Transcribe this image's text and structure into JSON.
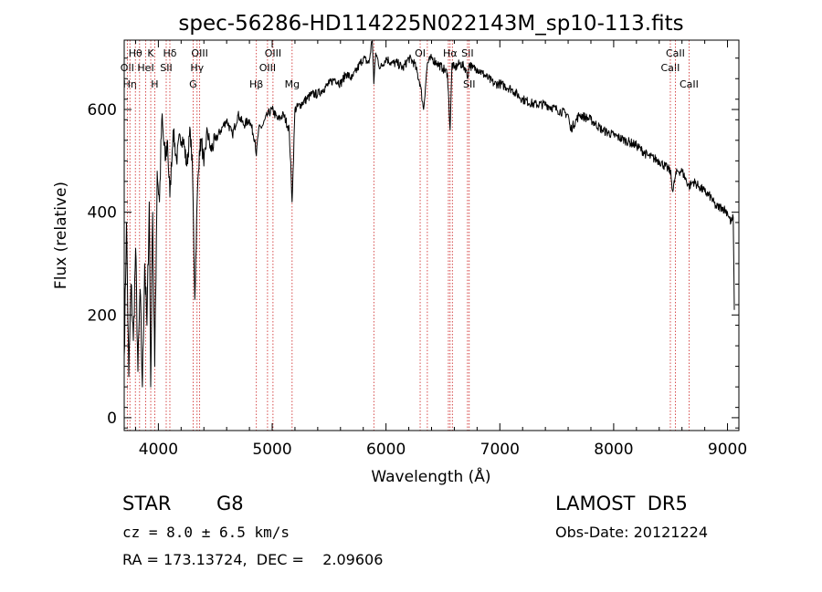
{
  "chart_data": {
    "type": "line",
    "title": "spec-56286-HD114225N022143M_sp10-113.fits",
    "xlabel": "Wavelength (Å)",
    "ylabel": "Flux (relative)",
    "xlim": [
      3700,
      9100
    ],
    "ylim": [
      -25,
      735
    ],
    "xticks": [
      4000,
      5000,
      6000,
      7000,
      8000,
      9000
    ],
    "yticks": [
      0,
      200,
      400,
      600
    ],
    "line_color": "#000000",
    "marker_color": "#cc2020",
    "series": [
      {
        "x": [
          3700,
          3720,
          3740,
          3760,
          3780,
          3800,
          3820,
          3840,
          3860,
          3880,
          3900,
          3920,
          3933,
          3950,
          3968,
          3990,
          4010,
          4030,
          4060,
          4080,
          4101,
          4130,
          4160,
          4190,
          4220,
          4250,
          4280,
          4300,
          4310,
          4320,
          4340,
          4360,
          4380,
          4400,
          4430,
          4460,
          4500,
          4550,
          4600,
          4650,
          4700,
          4750,
          4800,
          4850,
          4861,
          4880,
          4920,
          4960,
          5000,
          5050,
          5100,
          5150,
          5175,
          5200,
          5250,
          5300,
          5350,
          5400,
          5450,
          5500,
          5550,
          5600,
          5650,
          5700,
          5750,
          5800,
          5850,
          5880,
          5893,
          5910,
          5950,
          6000,
          6050,
          6100,
          6150,
          6200,
          6250,
          6300,
          6330,
          6363,
          6400,
          6450,
          6500,
          6540,
          6563,
          6580,
          6600,
          6650,
          6700,
          6716,
          6731,
          6760,
          6800,
          6850,
          6900,
          6950,
          7000,
          7100,
          7200,
          7300,
          7400,
          7500,
          7600,
          7620,
          7700,
          7800,
          7900,
          8000,
          8100,
          8200,
          8300,
          8400,
          8498,
          8520,
          8542,
          8560,
          8600,
          8662,
          8700,
          8750,
          8800,
          8850,
          8900,
          8950,
          9000,
          9030,
          9050,
          9060
        ],
        "y": [
          120,
          380,
          80,
          260,
          150,
          330,
          90,
          250,
          60,
          300,
          180,
          420,
          60,
          400,
          100,
          480,
          420,
          580,
          500,
          540,
          430,
          560,
          500,
          550,
          540,
          490,
          560,
          480,
          360,
          230,
          420,
          520,
          540,
          490,
          560,
          520,
          540,
          560,
          580,
          550,
          590,
          570,
          580,
          540,
          510,
          560,
          570,
          590,
          600,
          580,
          590,
          560,
          420,
          600,
          610,
          620,
          630,
          630,
          640,
          650,
          660,
          650,
          670,
          660,
          680,
          700,
          690,
          740,
          650,
          710,
          680,
          700,
          690,
          690,
          680,
          700,
          690,
          650,
          600,
          690,
          700,
          690,
          680,
          670,
          560,
          690,
          680,
          690,
          680,
          660,
          690,
          680,
          680,
          670,
          660,
          650,
          650,
          640,
          620,
          610,
          610,
          600,
          590,
          560,
          590,
          580,
          560,
          550,
          540,
          530,
          510,
          500,
          480,
          440,
          470,
          480,
          480,
          450,
          460,
          450,
          440,
          430,
          410,
          410,
          400,
          380,
          390,
          210
        ]
      }
    ],
    "lines": [
      {
        "x": 3727,
        "label": "OII",
        "row": 2
      },
      {
        "x": 3750,
        "label": "Hη",
        "row": 3
      },
      {
        "x": 3798,
        "label": "Hθ",
        "row": 1
      },
      {
        "x": 3835,
        "label": "",
        "row": 0
      },
      {
        "x": 3889,
        "label": "HeI",
        "row": 2
      },
      {
        "x": 3933,
        "label": "K",
        "row": 1
      },
      {
        "x": 3968,
        "label": "H",
        "row": 3
      },
      {
        "x": 4069,
        "label": "SII",
        "row": 2
      },
      {
        "x": 4101,
        "label": "Hδ",
        "row": 1
      },
      {
        "x": 4305,
        "label": "G",
        "row": 3
      },
      {
        "x": 4340,
        "label": "Hγ",
        "row": 2
      },
      {
        "x": 4363,
        "label": "OIII",
        "row": 1
      },
      {
        "x": 4861,
        "label": "Hβ",
        "row": 3
      },
      {
        "x": 4959,
        "label": "OIII",
        "row": 2
      },
      {
        "x": 5007,
        "label": "OIII",
        "row": 1
      },
      {
        "x": 5175,
        "label": "Mg",
        "row": 3
      },
      {
        "x": 5893,
        "label": "",
        "row": 0
      },
      {
        "x": 6300,
        "label": "OI",
        "row": 1
      },
      {
        "x": 6363,
        "label": "",
        "row": 0
      },
      {
        "x": 6548,
        "label": "",
        "row": 0
      },
      {
        "x": 6563,
        "label": "Hα",
        "row": 1
      },
      {
        "x": 6583,
        "label": "",
        "row": 0
      },
      {
        "x": 6716,
        "label": "SII",
        "row": 1
      },
      {
        "x": 6731,
        "label": "SII",
        "row": 3
      },
      {
        "x": 8498,
        "label": "CaII",
        "row": 2
      },
      {
        "x": 8542,
        "label": "CaII",
        "row": 1
      },
      {
        "x": 8662,
        "label": "CaII",
        "row": 3
      }
    ]
  },
  "info": {
    "object_type": "STAR",
    "subclass": "G8",
    "survey": "LAMOST  DR5",
    "cz": "cz = 8.0 ± 6.5 km/s",
    "obs_date": "Obs-Date: 20121224",
    "coords": "RA = 173.13724,  DEC =    2.09606"
  }
}
